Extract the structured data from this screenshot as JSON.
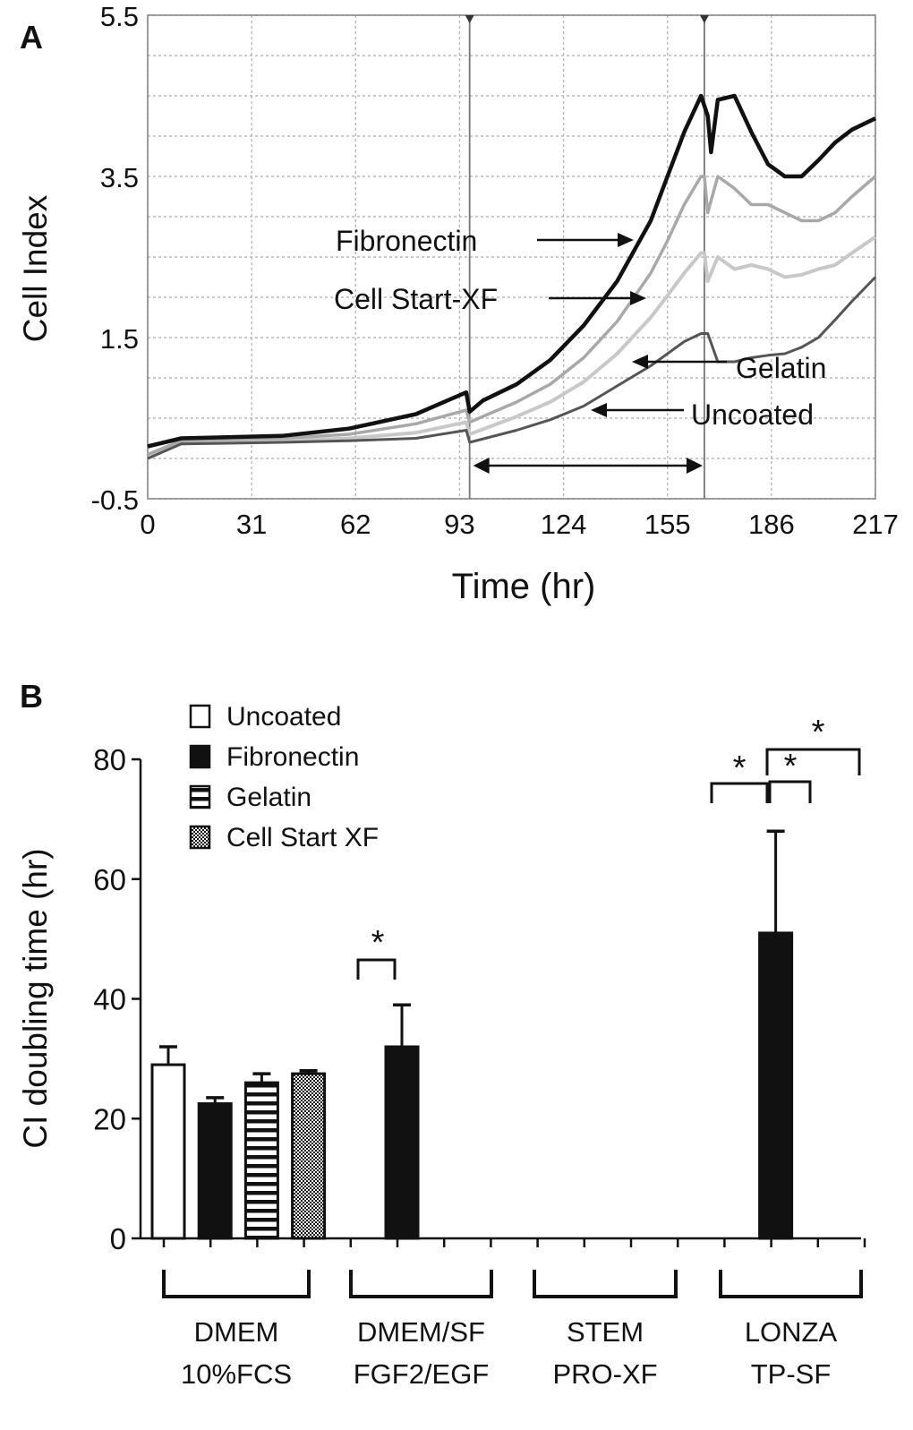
{
  "chart_data": [
    {
      "panel": "A",
      "type": "line",
      "xlabel": "Time (hr)",
      "ylabel": "Cell Index",
      "xlim": [
        0,
        217
      ],
      "ylim": [
        -0.5,
        5.5
      ],
      "xticks": [
        "0",
        "31",
        "62",
        "93",
        "124",
        "155",
        "186",
        "217"
      ],
      "yticks": [
        "-0.5",
        "1.5",
        "3.5",
        "5.5"
      ],
      "markers_x": [
        96,
        166
      ],
      "bracket_x": [
        96,
        166
      ],
      "grid": true,
      "series": [
        {
          "name": "Fibronectin",
          "color": "#111111",
          "width": 4.5,
          "x": [
            0,
            10,
            40,
            60,
            80,
            95,
            96,
            100,
            110,
            120,
            130,
            140,
            150,
            155,
            160,
            165,
            167,
            168,
            170,
            175,
            180,
            185,
            190,
            195,
            200,
            205,
            210,
            217
          ],
          "y": [
            0.15,
            0.25,
            0.28,
            0.37,
            0.55,
            0.82,
            0.58,
            0.72,
            0.92,
            1.22,
            1.65,
            2.2,
            2.95,
            3.5,
            4.05,
            4.5,
            4.25,
            3.8,
            4.45,
            4.5,
            4.05,
            3.65,
            3.5,
            3.5,
            3.7,
            3.92,
            4.08,
            4.22
          ]
        },
        {
          "name": "Cell Start-XF",
          "color": "#a8a8a8",
          "width": 3.5,
          "x": [
            0,
            10,
            40,
            60,
            80,
            95,
            96,
            110,
            120,
            130,
            140,
            150,
            155,
            160,
            165,
            166,
            167,
            170,
            175,
            180,
            185,
            190,
            195,
            200,
            205,
            210,
            217
          ],
          "y": [
            0.05,
            0.22,
            0.25,
            0.3,
            0.43,
            0.6,
            0.45,
            0.7,
            0.92,
            1.25,
            1.7,
            2.3,
            2.7,
            3.15,
            3.5,
            3.5,
            3.05,
            3.5,
            3.35,
            3.15,
            3.15,
            3.05,
            2.95,
            2.95,
            3.05,
            3.25,
            3.5
          ]
        },
        {
          "name": "Gelatin",
          "color": "#c8c8c8",
          "width": 4,
          "x": [
            0,
            10,
            40,
            60,
            80,
            95,
            96,
            110,
            120,
            130,
            140,
            150,
            155,
            160,
            165,
            166,
            167,
            170,
            175,
            180,
            185,
            190,
            195,
            200,
            205,
            210,
            217
          ],
          "y": [
            0.0,
            0.2,
            0.22,
            0.25,
            0.32,
            0.45,
            0.3,
            0.52,
            0.7,
            0.95,
            1.3,
            1.75,
            2.02,
            2.3,
            2.55,
            2.55,
            2.2,
            2.5,
            2.35,
            2.4,
            2.35,
            2.25,
            2.28,
            2.35,
            2.4,
            2.55,
            2.75
          ]
        },
        {
          "name": "Uncoated",
          "color": "#555555",
          "width": 3,
          "x": [
            0,
            10,
            40,
            60,
            80,
            95,
            96,
            110,
            120,
            130,
            140,
            150,
            155,
            160,
            165,
            167,
            170,
            175,
            180,
            185,
            190,
            195,
            200,
            205,
            210,
            217
          ],
          "y": [
            0.0,
            0.18,
            0.2,
            0.22,
            0.25,
            0.35,
            0.2,
            0.35,
            0.48,
            0.65,
            0.9,
            1.15,
            1.3,
            1.45,
            1.55,
            1.55,
            1.2,
            1.2,
            1.25,
            1.28,
            1.3,
            1.38,
            1.5,
            1.72,
            1.95,
            2.25
          ]
        }
      ],
      "annotations": [
        "Fibronectin",
        "Cell Start-XF",
        "Gelatin",
        "Uncoated"
      ]
    },
    {
      "panel": "B",
      "type": "bar",
      "ylabel": "CI doubling time (hr)",
      "ylim": [
        0,
        80
      ],
      "yticks": [
        "0",
        "20",
        "40",
        "60",
        "80"
      ],
      "legend_position": "top-left",
      "series": [
        {
          "name": "Uncoated",
          "pattern": "white"
        },
        {
          "name": "Fibronectin",
          "pattern": "black"
        },
        {
          "name": "Gelatin",
          "pattern": "horizontal-stripes"
        },
        {
          "name": "Cell Start XF",
          "pattern": "checker"
        }
      ],
      "groups": [
        {
          "label_line1": "DMEM",
          "label_line2": "10%FCS",
          "values": [
            29,
            22.5,
            26,
            27.5
          ],
          "errors": [
            3,
            1,
            1.5,
            0.5
          ]
        },
        {
          "label_line1": "DMEM/SF",
          "label_line2": "FGF2/EGF",
          "values": [
            null,
            32,
            null,
            null
          ],
          "errors": [
            null,
            7,
            null,
            null
          ]
        },
        {
          "label_line1": "STEM",
          "label_line2": "PRO-XF",
          "values": [
            null,
            null,
            null,
            null
          ],
          "errors": [
            null,
            null,
            null,
            null
          ]
        },
        {
          "label_line1": "LONZA",
          "label_line2": "TP-SF",
          "values": [
            null,
            51,
            null,
            null
          ],
          "errors": [
            null,
            17,
            null,
            null
          ]
        }
      ],
      "significance_marks": [
        "*",
        "*",
        "*",
        "*"
      ]
    }
  ],
  "panel_labels": {
    "a": "A",
    "b": "B"
  }
}
